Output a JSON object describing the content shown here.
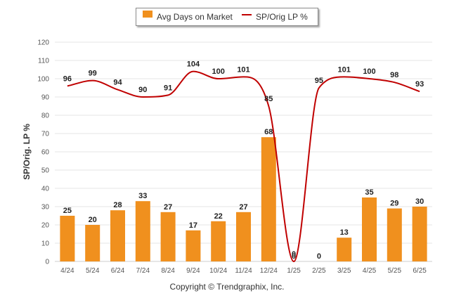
{
  "chart_data": {
    "type": "bar",
    "categories": [
      "4/24",
      "5/24",
      "6/24",
      "7/24",
      "8/24",
      "9/24",
      "10/24",
      "11/24",
      "12/24",
      "1/25",
      "2/25",
      "3/25",
      "4/25",
      "5/25",
      "6/25"
    ],
    "series": [
      {
        "name": "Avg Days on Market",
        "type": "bar",
        "color": "#f0901e",
        "values": [
          25,
          20,
          28,
          33,
          27,
          17,
          22,
          27,
          68,
          0,
          0,
          13,
          35,
          29,
          30
        ]
      },
      {
        "name": "SP/Orig LP %",
        "type": "line",
        "color": "#c00000",
        "values": [
          96,
          99,
          94,
          90,
          91,
          104,
          100,
          101,
          85,
          0,
          95,
          101,
          100,
          98,
          93
        ]
      }
    ],
    "ylabel": "SP/Orig. LP %",
    "ylim": [
      0,
      120
    ],
    "yticks": [
      0,
      10,
      20,
      30,
      40,
      50,
      60,
      70,
      80,
      90,
      100,
      110,
      120
    ],
    "grid": true,
    "legend_position": "top"
  },
  "legend": {
    "bar_label": "Avg Days on Market",
    "line_label": "SP/Orig LP %"
  },
  "copyright": "Copyright © Trendgraphix, Inc."
}
